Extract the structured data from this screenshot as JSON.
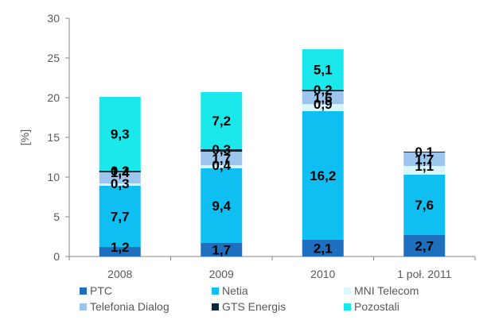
{
  "chart_data": {
    "type": "bar",
    "stacked": true,
    "categories": [
      "2008",
      "2009",
      "2010",
      "1 poł. 2011"
    ],
    "ylabel": "[%]",
    "ylim": [
      0,
      30
    ],
    "yticks": [
      "0",
      "5",
      "10",
      "15",
      "20",
      "25",
      "30"
    ],
    "grid": false,
    "legend_position": "bottom",
    "series": [
      {
        "name": "PTC",
        "color": "#1f6fbf",
        "values": [
          1.2,
          1.7,
          2.1,
          2.7
        ],
        "labels": [
          "1,2",
          "1,7",
          "2,1",
          "2,7"
        ]
      },
      {
        "name": "Netia",
        "color": "#0fbff2",
        "values": [
          7.7,
          9.4,
          16.2,
          7.6
        ],
        "labels": [
          "7,7",
          "9,4",
          "16,2",
          "7,6"
        ]
      },
      {
        "name": "MNI Telecom",
        "color": "#d9f7fb",
        "values": [
          0.3,
          0.4,
          0.9,
          1.1
        ],
        "labels": [
          "0,3",
          "0,4",
          "0,9",
          "1,1"
        ]
      },
      {
        "name": "Telefonia Dialog",
        "color": "#9cc5ee",
        "values": [
          1.4,
          1.7,
          1.6,
          1.7
        ],
        "labels": [
          "1,4",
          "1,7",
          "1,6",
          "1,7"
        ]
      },
      {
        "name": "GTS Energis",
        "color": "#0d2a3c",
        "values": [
          0.2,
          0.3,
          0.2,
          0.1
        ],
        "labels": [
          "0,2",
          "0,3",
          "0,2",
          "0,1"
        ]
      },
      {
        "name": "Pozostali",
        "color": "#1ae8ea",
        "values": [
          9.3,
          7.2,
          5.1,
          0
        ],
        "labels": [
          "9,3",
          "7,2",
          "5,1",
          ""
        ]
      }
    ]
  }
}
